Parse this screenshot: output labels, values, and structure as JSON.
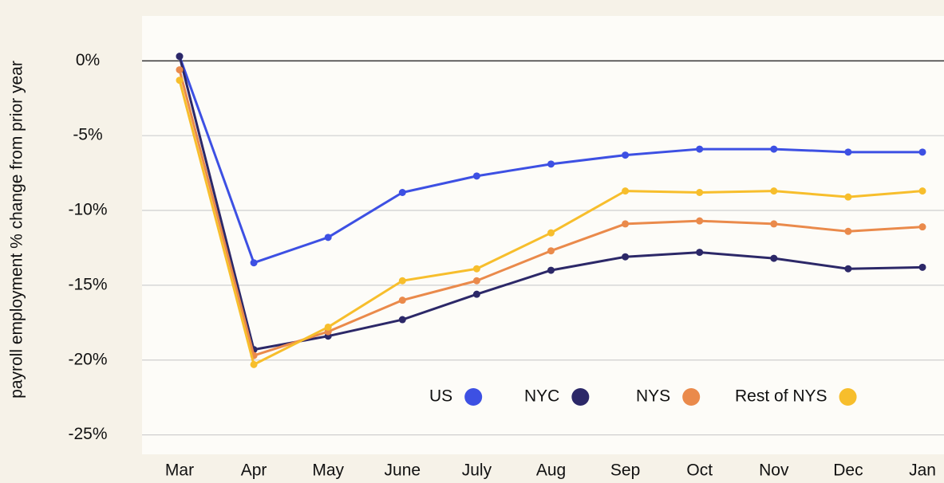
{
  "chart_data": {
    "type": "line",
    "y_label": "payroll employment % change from prior year",
    "categories": [
      "Mar",
      "Apr",
      "May",
      "June",
      "July",
      "Aug",
      "Sep",
      "Oct",
      "Nov",
      "Dec",
      "Jan"
    ],
    "series": [
      {
        "name": "US",
        "color": "#3d50e3",
        "values": [
          0.3,
          -13.5,
          -11.8,
          -8.8,
          -7.7,
          -6.9,
          -6.3,
          -5.9,
          -5.9,
          -6.1,
          -6.1
        ]
      },
      {
        "name": "NYC",
        "color": "#2c2868",
        "values": [
          0.3,
          -19.3,
          -18.4,
          -17.3,
          -15.6,
          -14.0,
          -13.1,
          -12.8,
          -13.2,
          -13.9,
          -13.8
        ]
      },
      {
        "name": "NYS",
        "color": "#ea8a4b",
        "values": [
          -0.6,
          -19.7,
          -18.1,
          -16.0,
          -14.7,
          -12.7,
          -10.9,
          -10.7,
          -10.9,
          -11.4,
          -11.1
        ]
      },
      {
        "name": "Rest of NYS",
        "color": "#f7be2c",
        "values": [
          -1.3,
          -20.3,
          -17.8,
          -14.7,
          -13.9,
          -11.5,
          -8.7,
          -8.8,
          -8.7,
          -9.1,
          -8.7
        ]
      }
    ],
    "ylim": [
      -26.3,
      3
    ],
    "yticks": [
      {
        "value": 0,
        "label": "0%"
      },
      {
        "value": -5,
        "label": "-5%"
      },
      {
        "value": -10,
        "label": "-10%"
      },
      {
        "value": -15,
        "label": "-15%"
      },
      {
        "value": -20,
        "label": "-20%"
      },
      {
        "value": -25,
        "label": "-25%"
      }
    ],
    "grid": true
  }
}
